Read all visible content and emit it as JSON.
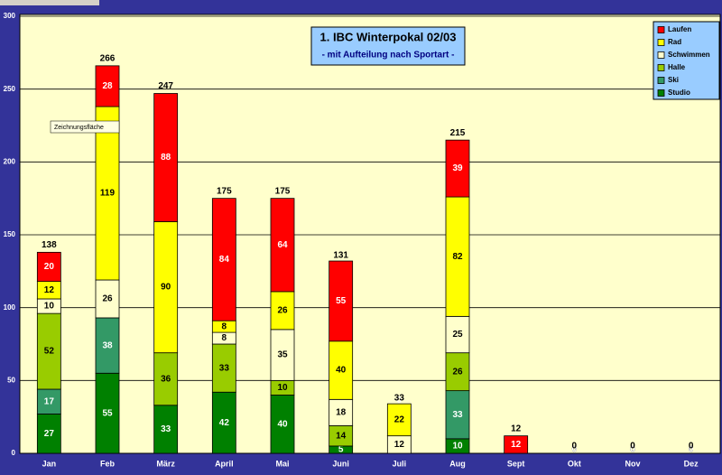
{
  "chart_data": {
    "type": "stacked-bar",
    "title": "1. IBC Winterpokal 02/03",
    "subtitle": "- mit Aufteilung nach Sportart -",
    "tooltip": "Zeichnungsfläche",
    "categories": [
      "Jan",
      "Feb",
      "März",
      "April",
      "Mai",
      "Juni",
      "Juli",
      "Aug",
      "Sept",
      "Okt",
      "Nov",
      "Dez"
    ],
    "series": [
      {
        "name": "Studio",
        "color": "#008000",
        "label_color": "#ffffff",
        "values": [
          27,
          55,
          33,
          42,
          40,
          5,
          0,
          10,
          0,
          0,
          0,
          0
        ]
      },
      {
        "name": "Ski",
        "color": "#339966",
        "label_color": "#ffffff",
        "values": [
          17,
          38,
          0,
          0,
          0,
          0,
          0,
          33,
          0,
          0,
          0,
          0
        ]
      },
      {
        "name": "Halle",
        "color": "#99cc00",
        "label_color": "#000000",
        "values": [
          52,
          0,
          36,
          33,
          10,
          14,
          0,
          26,
          0,
          0,
          0,
          0
        ]
      },
      {
        "name": "Schwimmen",
        "color": "#ffffcc",
        "label_color": "#000000",
        "values": [
          10,
          26,
          0,
          8,
          35,
          18,
          12,
          25,
          0,
          0,
          0,
          0
        ]
      },
      {
        "name": "Rad",
        "color": "#ffff00",
        "label_color": "#000000",
        "values": [
          12,
          119,
          90,
          8,
          26,
          40,
          22,
          82,
          0,
          0,
          0,
          0
        ]
      },
      {
        "name": "Laufen",
        "color": "#ff0000",
        "label_color": "#ffffff",
        "values": [
          20,
          28,
          88,
          84,
          64,
          55,
          0,
          39,
          12,
          0,
          0,
          0
        ]
      }
    ],
    "totals": [
      138,
      266,
      247,
      175,
      175,
      131,
      33,
      215,
      12,
      0,
      0,
      0
    ],
    "ylim": [
      0,
      300
    ],
    "yticks": [
      0,
      50,
      100,
      150,
      200,
      250,
      300
    ],
    "grid": true
  }
}
